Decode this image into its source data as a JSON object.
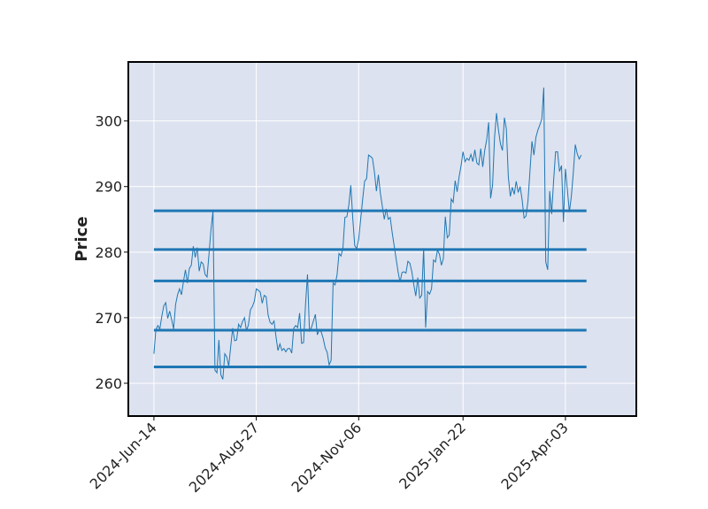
{
  "chart_data": {
    "type": "line",
    "ylabel": "Price",
    "xlabel": "",
    "title": "",
    "ylim": [
      255,
      309
    ],
    "y_ticks": [
      260,
      270,
      280,
      290,
      300
    ],
    "x_tick_labels": [
      "2024-Jun-14",
      "2024-Aug-27",
      "2024-Nov-06",
      "2025-Jan-22",
      "2025-Apr-03"
    ],
    "x_tick_indices": [
      0,
      52,
      104,
      157,
      209
    ],
    "x_range_indices": [
      -13,
      245
    ],
    "grid": true,
    "colors": {
      "background": "#dce2ef",
      "grid": "#ffffff",
      "line": "#1f77b4",
      "levels": "#1f77b4"
    },
    "series": [
      {
        "values": [
          264.5,
          268.2,
          268.8,
          268.3,
          270.2,
          271.8,
          272.3,
          269.9,
          271.0,
          269.7,
          268.3,
          272.0,
          273.5,
          274.4,
          273.5,
          275.5,
          277.3,
          275.3,
          277.5,
          278.0,
          280.9,
          279.2,
          280.7,
          277.1,
          278.5,
          278.2,
          276.6,
          276.2,
          279.8,
          283.5,
          286.3,
          262.0,
          261.6,
          266.6,
          261.3,
          260.6,
          264.5,
          264.0,
          262.6,
          265.6,
          268.4,
          266.5,
          266.6,
          269.0,
          268.5,
          269.4,
          270.0,
          268.0,
          268.9,
          271.2,
          271.7,
          272.5,
          274.4,
          274.2,
          273.9,
          272.2,
          273.4,
          273.2,
          270.4,
          269.3,
          269.0,
          269.5,
          267.1,
          265.0,
          266.0,
          265.0,
          265.3,
          264.8,
          265.3,
          265.3,
          264.6,
          268.4,
          268.8,
          268.5,
          270.7,
          266.1,
          266.2,
          272.0,
          276.6,
          268.0,
          268.5,
          269.5,
          270.5,
          267.4,
          268.1,
          267.8,
          266.8,
          265.4,
          264.7,
          262.8,
          263.5,
          275.3,
          275.0,
          276.5,
          279.8,
          279.4,
          280.6,
          285.3,
          285.4,
          287.2,
          290.2,
          285.1,
          281.0,
          280.5,
          282.0,
          285.0,
          288.0,
          290.8,
          291.2,
          294.8,
          294.6,
          294.3,
          292.2,
          289.3,
          291.8,
          289.0,
          287.0,
          285.0,
          286.6,
          285.0,
          285.3,
          283.0,
          281.0,
          279.0,
          277.0,
          275.4,
          276.9,
          277.0,
          276.8,
          278.6,
          278.3,
          277.0,
          275.0,
          273.3,
          276.1,
          273.0,
          273.4,
          280.6,
          268.5,
          274.0,
          273.6,
          274.4,
          278.8,
          278.5,
          280.3,
          279.7,
          278.0,
          279.0,
          285.4,
          282.2,
          282.6,
          288.1,
          287.6,
          290.9,
          289.2,
          291.5,
          293.2,
          295.3,
          293.8,
          294.3,
          294.0,
          294.9,
          293.8,
          295.6,
          293.6,
          293.3,
          295.8,
          293.0,
          295.5,
          297.1,
          299.8,
          288.2,
          290.2,
          297.5,
          301.2,
          298.6,
          296.5,
          295.5,
          300.5,
          298.8,
          291.5,
          288.5,
          289.9,
          288.8,
          290.8,
          289.1,
          290.0,
          288.0,
          285.2,
          285.5,
          287.9,
          292.4,
          296.9,
          294.8,
          297.5,
          298.6,
          299.4,
          300.3,
          305.1,
          278.5,
          277.3,
          289.3,
          285.8,
          290.9,
          295.3,
          295.3,
          292.3,
          293.2,
          284.6,
          292.7,
          289.5,
          286.1,
          288.5,
          292.1,
          296.4,
          295.0,
          294.2,
          294.8
        ]
      }
    ],
    "levels": [
      262.5,
      268.1,
      275.6,
      280.4,
      286.3
    ]
  }
}
